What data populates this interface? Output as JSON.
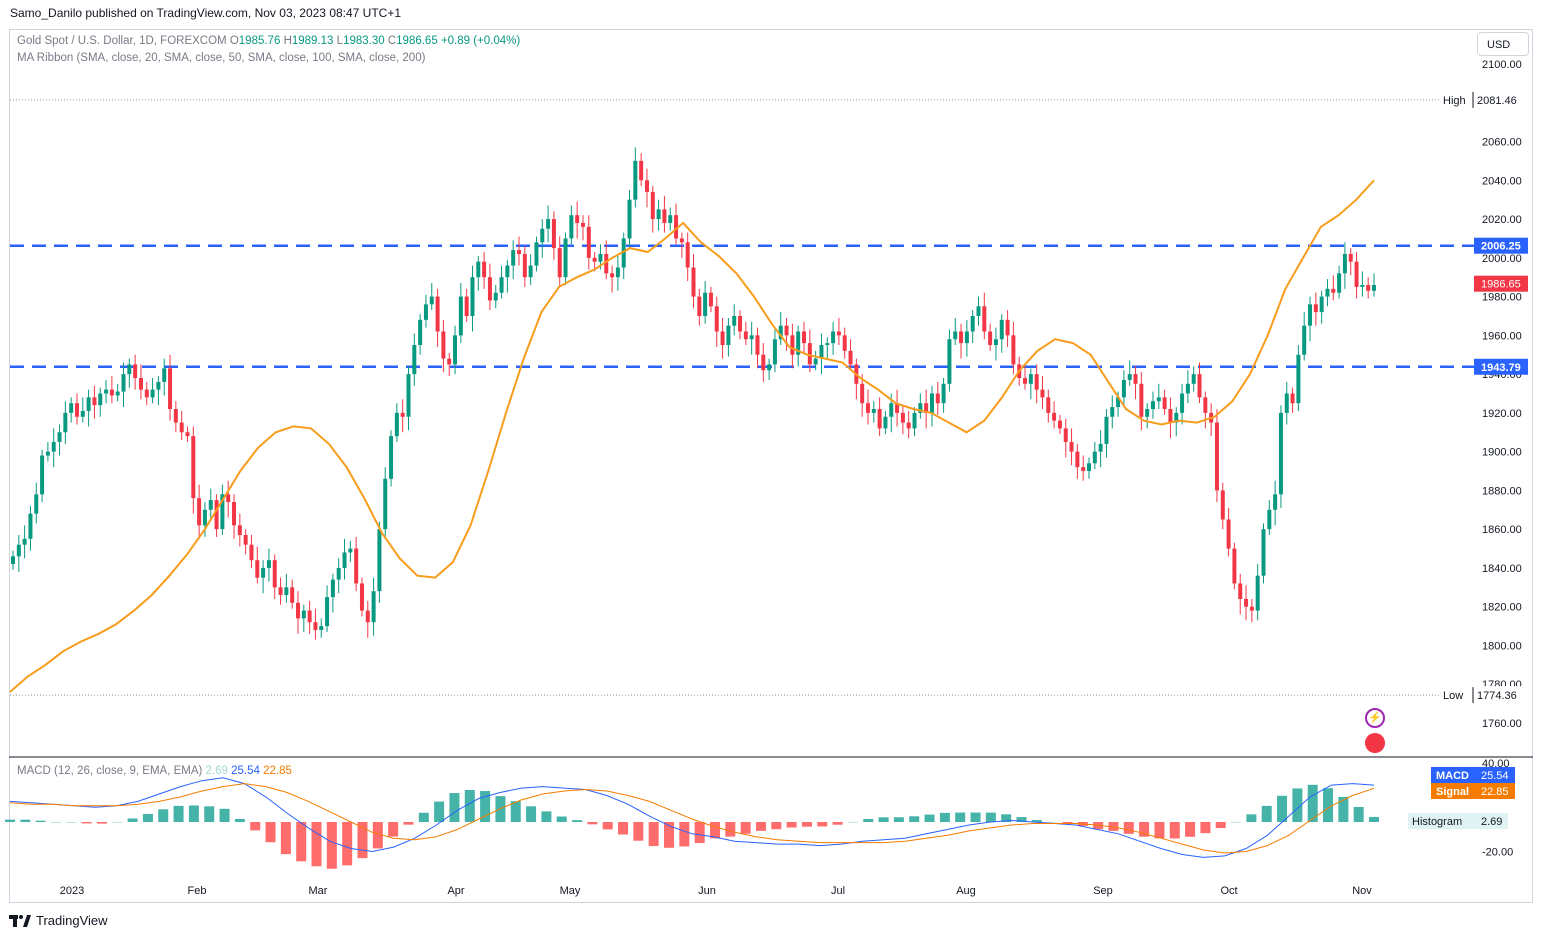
{
  "header": {
    "publisher": "Samo_Danilo published on TradingView.com, Nov 03, 2023 08:47 UTC+1",
    "currency_button": "USD"
  },
  "legend": {
    "symbol": "Gold Spot / U.S. Dollar, 1D, FOREXCOM",
    "o_label": "O",
    "o_value": "1985.76",
    "h_label": "H",
    "h_value": "1989.13",
    "l_label": "L",
    "l_value": "1983.30",
    "c_label": "C",
    "c_value": "1986.65",
    "change": "+0.89 (+0.04%)",
    "ma_ribbon": "MA Ribbon (SMA, close, 20, SMA, close, 50, SMA, close, 100, SMA, close, 200)"
  },
  "macd_legend": {
    "title": "MACD (12, 26, close, 9, EMA, EMA)",
    "hist": "2.69",
    "macd": "25.54",
    "signal": "22.85"
  },
  "footer": {
    "brand": "TradingView"
  },
  "colors": {
    "up": "#089981",
    "down": "#f23645",
    "ma": "#f89c1c",
    "level": "#2962ff",
    "macd": "#2962ff",
    "signal": "#f57c00",
    "hist_up_strong": "#26a69a",
    "hist_up_weak": "#b2dfdb",
    "hist_down_strong": "#ff5252",
    "hist_down_weak": "#ffcdd2"
  },
  "chart_data": [
    {
      "type": "candlestick",
      "title": "Gold Spot / U.S. Dollar, 1D, FOREXCOM",
      "ylim": [
        1770,
        2100
      ],
      "yticks": [
        "2100.00",
        "2080.00",
        "2060.00",
        "2040.00",
        "2020.00",
        "2000.00",
        "1980.00",
        "1960.00",
        "1940.00",
        "1920.00",
        "1900.00",
        "1880.00",
        "1860.00",
        "1840.00",
        "1820.00",
        "1800.00",
        "1780.00",
        "1760.00"
      ],
      "x_labels": [
        "2023",
        "Feb",
        "Mar",
        "Apr",
        "May",
        "Jun",
        "Jul",
        "Aug",
        "Sep",
        "Oct",
        "Nov"
      ],
      "close_series": [
        1846,
        1852,
        1855,
        1868,
        1878,
        1898,
        1900,
        1905,
        1910,
        1920,
        1925,
        1918,
        1921,
        1928,
        1924,
        1930,
        1932,
        1929,
        1931,
        1940,
        1945,
        1938,
        1932,
        1928,
        1932,
        1936,
        1943,
        1922,
        1915,
        1910,
        1908,
        1876,
        1862,
        1870,
        1875,
        1860,
        1878,
        1874,
        1862,
        1857,
        1852,
        1844,
        1835,
        1840,
        1844,
        1830,
        1826,
        1830,
        1822,
        1814,
        1818,
        1812,
        1808,
        1810,
        1825,
        1834,
        1840,
        1848,
        1850,
        1832,
        1818,
        1812,
        1828,
        1860,
        1886,
        1908,
        1920,
        1918,
        1940,
        1955,
        1968,
        1976,
        1980,
        1962,
        1948,
        1945,
        1960,
        1980,
        1970,
        1990,
        1998,
        1990,
        1978,
        1982,
        1990,
        1996,
        2004,
        2002,
        1990,
        1996,
        2008,
        2015,
        2020,
        2005,
        1990,
        2010,
        2022,
        2018,
        2016,
        2000,
        1998,
        2002,
        1992,
        1990,
        1995,
        2010,
        2030,
        2050,
        2040,
        2034,
        2020,
        2025,
        2018,
        2022,
        2010,
        2008,
        1995,
        1980,
        1970,
        1982,
        1975,
        1962,
        1955,
        1965,
        1970,
        1962,
        1958,
        1960,
        1950,
        1942,
        1945,
        1958,
        1965,
        1960,
        1950,
        1962,
        1956,
        1945,
        1948,
        1955,
        1956,
        1962,
        1960,
        1952,
        1945,
        1935,
        1925,
        1920,
        1922,
        1912,
        1918,
        1925,
        1920,
        1915,
        1912,
        1920,
        1925,
        1920,
        1930,
        1925,
        1935,
        1958,
        1962,
        1956,
        1962,
        1970,
        1975,
        1962,
        1955,
        1958,
        1968,
        1960,
        1945,
        1938,
        1935,
        1940,
        1932,
        1928,
        1920,
        1916,
        1912,
        1905,
        1900,
        1892,
        1890,
        1894,
        1900,
        1904,
        1918,
        1923,
        1928,
        1937,
        1940,
        1935,
        1918,
        1922,
        1926,
        1928,
        1922,
        1915,
        1920,
        1930,
        1935,
        1940,
        1928,
        1920,
        1915,
        1880,
        1865,
        1850,
        1832,
        1824,
        1820,
        1818,
        1836,
        1860,
        1870,
        1878,
        1920,
        1930,
        1925,
        1950,
        1965,
        1976,
        1972,
        1980,
        1984,
        1982,
        1992,
        2002,
        1998,
        1985,
        1986,
        1983,
        1986
      ],
      "ma20_series": [
        1776,
        1784,
        1790,
        1797,
        1802,
        1806,
        1811,
        1818,
        1826,
        1836,
        1847,
        1860,
        1875,
        1890,
        1902,
        1910,
        1913,
        1912,
        1904,
        1892,
        1876,
        1858,
        1845,
        1836,
        1835,
        1843,
        1862,
        1890,
        1920,
        1948,
        1972,
        1985,
        1990,
        1994,
        2000,
        2005,
        2003,
        2010,
        2018,
        2008,
        2001,
        1992,
        1980,
        1966,
        1954,
        1950,
        1948,
        1946,
        1938,
        1932,
        1925,
        1922,
        1920,
        1915,
        1910,
        1916,
        1928,
        1942,
        1952,
        1958,
        1956,
        1950,
        1936,
        1922,
        1916,
        1914,
        1916,
        1915,
        1918,
        1926,
        1940,
        1960,
        1984,
        2000,
        2016,
        2022,
        2030,
        2040
      ],
      "high_label": "High",
      "high_value": "2081.46",
      "high_price": 2081.46,
      "low_label": "Low",
      "low_value": "1774.36",
      "low_price": 1774.36,
      "levels": [
        {
          "label": "2006.25",
          "price": 2006.25
        },
        {
          "label": "1943.79",
          "price": 1943.79
        }
      ],
      "last_price": {
        "label": "1986.65",
        "price": 1986.65
      }
    },
    {
      "type": "macd",
      "title": "MACD (12, 26, close, 9, EMA, EMA)",
      "ylim": [
        -25,
        40
      ],
      "yticks": [
        "40.00",
        "-20.00"
      ],
      "macd_series": [
        14,
        13,
        12,
        11,
        10,
        11,
        14,
        19,
        24,
        28,
        30,
        26,
        17,
        6,
        -4,
        -13,
        -18,
        -20,
        -17,
        -11,
        -2,
        8,
        16,
        20,
        23,
        24,
        23,
        22,
        18,
        12,
        4,
        -3,
        -8,
        -10,
        -13,
        -14,
        -15,
        -15,
        -16,
        -15,
        -13,
        -12,
        -11,
        -8,
        -5,
        -2,
        0,
        1,
        0,
        -1,
        -2,
        -5,
        -8,
        -13,
        -18,
        -22,
        -24,
        -23,
        -18,
        -9,
        4,
        17,
        25,
        26,
        25
      ],
      "signal_series": [
        13,
        12,
        12,
        11,
        11,
        11,
        12,
        14,
        17,
        21,
        24,
        26,
        24,
        20,
        14,
        7,
        0,
        -7,
        -11,
        -12,
        -10,
        -5,
        2,
        9,
        15,
        19,
        21,
        22,
        21,
        18,
        14,
        8,
        2,
        -3,
        -7,
        -10,
        -12,
        -13,
        -14,
        -14,
        -14,
        -14,
        -13,
        -11,
        -9,
        -6,
        -4,
        -2,
        -1,
        -1,
        -1,
        -2,
        -4,
        -7,
        -11,
        -15,
        -19,
        -21,
        -20,
        -16,
        -9,
        1,
        11,
        18,
        22.85
      ],
      "histogram_last": 2.69,
      "macd_last": 25.54,
      "signal_last": 22.85,
      "labels": {
        "macd": "MACD",
        "signal": "Signal",
        "histogram": "Histogram"
      }
    }
  ]
}
